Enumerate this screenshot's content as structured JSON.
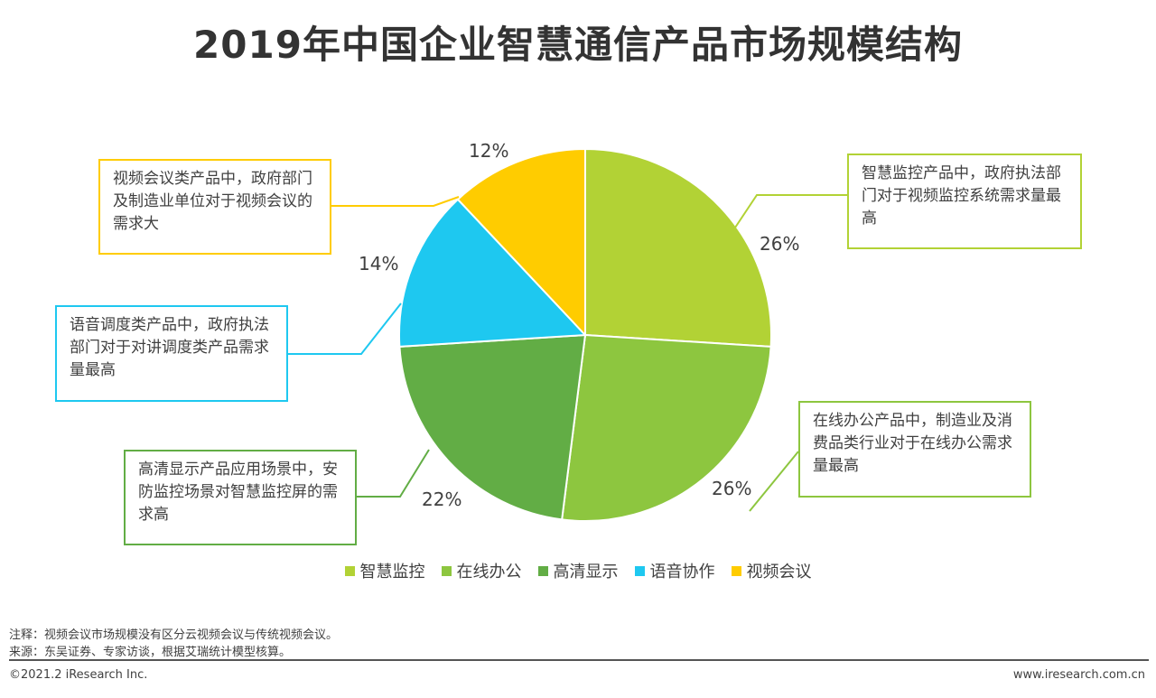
{
  "chart_data": {
    "type": "pie",
    "title": "2019年中国企业智慧通信产品市场规模结构",
    "categories": [
      "智慧监控",
      "在线办公",
      "高清显示",
      "语音协作",
      "视频会议"
    ],
    "values": [
      26,
      26,
      22,
      14,
      12
    ],
    "value_labels": [
      "26%",
      "26%",
      "22%",
      "14%",
      "12%"
    ],
    "colors": [
      "#b2d235",
      "#8dc63f",
      "#62ad45",
      "#1ec8f0",
      "#ffcc00"
    ],
    "legend_position": "bottom",
    "annotations": [
      "智慧监控产品中，政府执法部门对于视频监控系统需求量最高",
      "在线办公产品中，制造业及消费品类行业对于在线办公需求量最高",
      "高清显示产品应用场景中，安防监控场景对智慧监控屏的需求高",
      "语音调度类产品中，政府执法部门对于对讲调度类产品需求量最高",
      "视频会议类产品中，政府部门及制造业单位对于视频会议的需求大"
    ]
  },
  "footer": {
    "note": "注释：视频会议市场规模没有区分云视频会议与传统视频会议。",
    "source": "来源：东吴证券、专家访谈，根据艾瑞统计模型核算。",
    "copyright": "©2021.2 iResearch Inc.",
    "website": "www.iresearch.com.cn"
  }
}
